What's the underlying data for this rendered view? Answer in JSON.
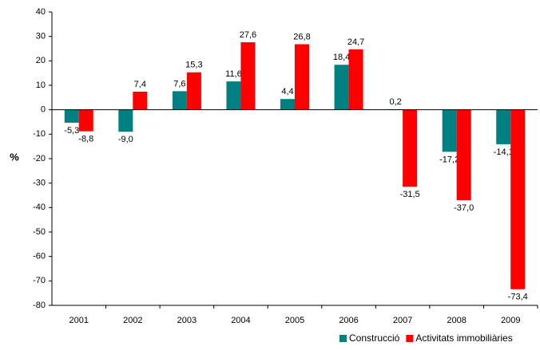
{
  "chart_data": {
    "type": "bar",
    "y_label": "%",
    "categories": [
      "2001",
      "2002",
      "2003",
      "2004",
      "2005",
      "2006",
      "2007",
      "2008",
      "2009"
    ],
    "series": [
      {
        "name": "Construcció",
        "color": "#008080",
        "values": [
          -5.3,
          -9.0,
          7.6,
          11.6,
          4.4,
          18.4,
          0.2,
          -17.2,
          -14.1
        ],
        "value_labels": [
          "-5,3",
          "-9,0",
          "7,6",
          "11,6",
          "4,4",
          "18,4",
          "0,2",
          "-17,2",
          "-14,1"
        ]
      },
      {
        "name": "Activitats immobiliàries",
        "color": "#ff0000",
        "values": [
          -8.8,
          7.4,
          15.3,
          27.6,
          26.8,
          24.7,
          -31.5,
          -37.0,
          -73.4
        ],
        "value_labels": [
          "-8,8",
          "7,4",
          "15,3",
          "27,6",
          "26,8",
          "24,7",
          "-31,5",
          "-37,0",
          "-73,4"
        ]
      }
    ],
    "ylim": [
      -80,
      40
    ],
    "yticks": [
      -80,
      -70,
      -60,
      -50,
      -40,
      -30,
      -20,
      -10,
      0,
      10,
      20,
      30,
      40
    ],
    "grid": false,
    "legend": "bottom-right"
  }
}
